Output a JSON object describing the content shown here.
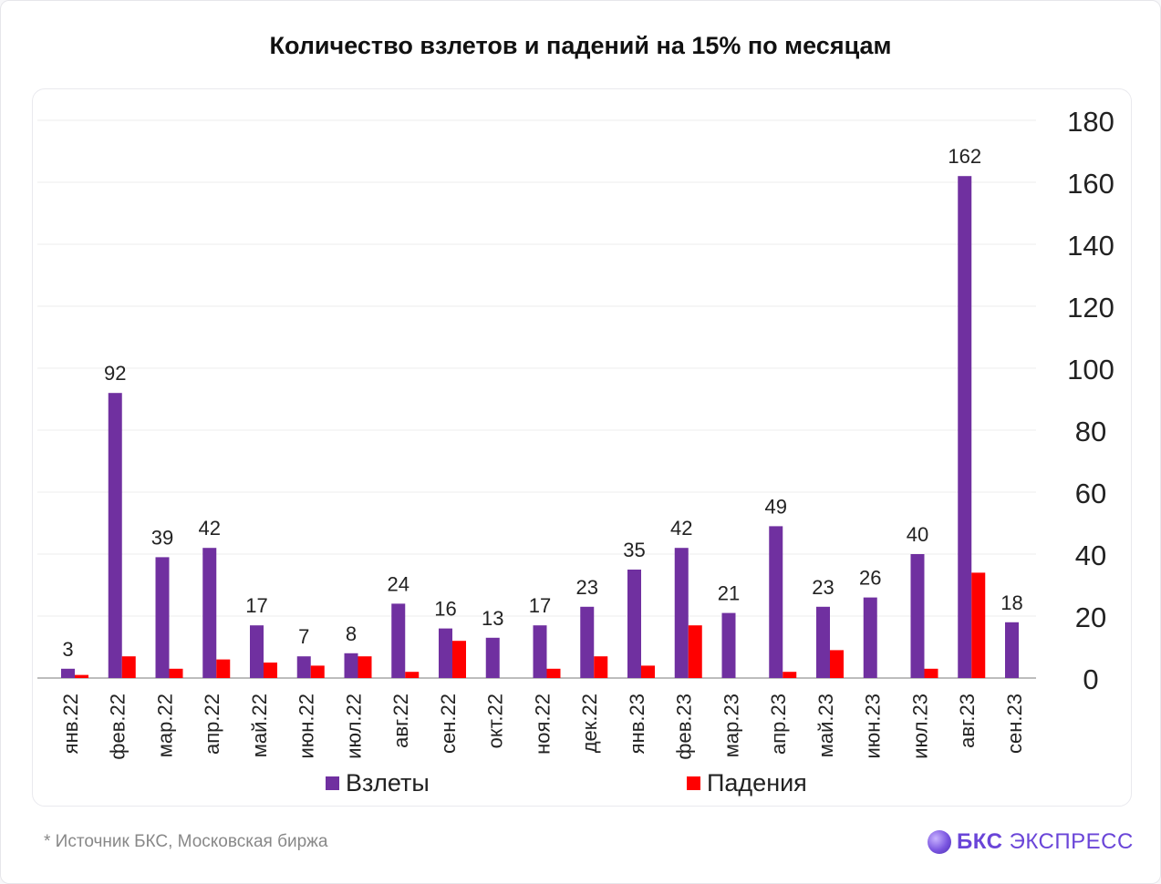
{
  "title": "Количество взлетов и падений на 15% по месяцам",
  "footnote": "*  Источник БКС, Московская биржа",
  "logo": {
    "brand": "БКС",
    "product": "ЭКСПРЕСС"
  },
  "colors": {
    "series1": "#7030a0",
    "series2": "#ff0000",
    "grid": "#ededed",
    "axis": "#bdbdbd"
  },
  "chart_data": {
    "type": "bar",
    "categories": [
      "янв.22",
      "фев.22",
      "мар.22",
      "апр.22",
      "май.22",
      "июн.22",
      "июл.22",
      "авг.22",
      "сен.22",
      "окт.22",
      "ноя.22",
      "дек.22",
      "янв.23",
      "фев.23",
      "мар.23",
      "апр.23",
      "май.23",
      "июн.23",
      "июл.23",
      "авг.23",
      "сен.23"
    ],
    "series": [
      {
        "name": "Взлеты",
        "values": [
          3,
          92,
          39,
          42,
          17,
          7,
          8,
          24,
          16,
          13,
          17,
          23,
          35,
          42,
          21,
          49,
          23,
          26,
          40,
          162,
          18
        ]
      },
      {
        "name": "Падения",
        "values": [
          1,
          7,
          3,
          6,
          5,
          4,
          7,
          2,
          12,
          0,
          3,
          7,
          4,
          17,
          0,
          2,
          9,
          0,
          3,
          34,
          0
        ]
      }
    ],
    "data_labels": [
      "3",
      "92",
      "39",
      "42",
      "17",
      "7",
      "8",
      "24",
      "16",
      "13",
      "17",
      "23",
      "35",
      "42",
      "21",
      "49",
      "23",
      "26",
      "40",
      "162",
      "18"
    ],
    "y_ticks": [
      "0",
      "20",
      "40",
      "60",
      "80",
      "100",
      "120",
      "140",
      "160",
      "180"
    ],
    "ylim": [
      0,
      180
    ],
    "y_axis_side": "right",
    "grid": true,
    "legend": "bottom"
  }
}
